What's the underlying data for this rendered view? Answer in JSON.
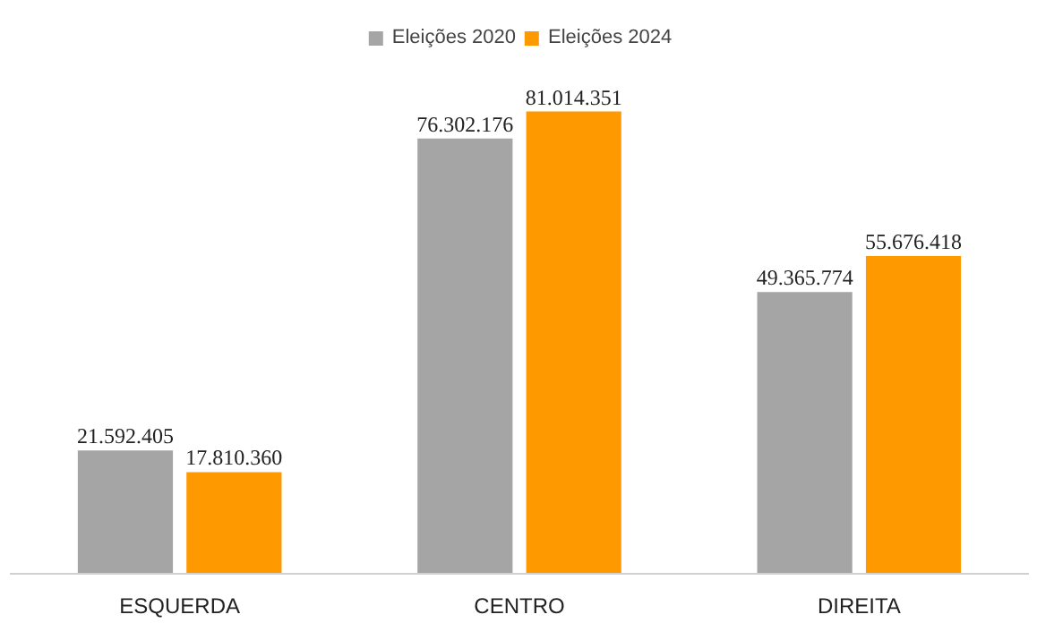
{
  "chart_data": {
    "type": "bar",
    "categories": [
      "ESQUERDA",
      "CENTRO",
      "DIREITA"
    ],
    "series": [
      {
        "name": "Eleições 2020",
        "color": "#a5a5a5",
        "values": [
          21592405,
          76302176,
          49365774
        ],
        "value_labels": [
          "21.592.405",
          "76.302.176",
          "49.365.774"
        ]
      },
      {
        "name": "Eleições 2024",
        "color": "#ff9900",
        "values": [
          17810360,
          81014351,
          55676418
        ],
        "value_labels": [
          "17.810.360",
          "81.014.351",
          "55.676.418"
        ]
      }
    ],
    "legend": "top",
    "tick_labels": "x"
  }
}
